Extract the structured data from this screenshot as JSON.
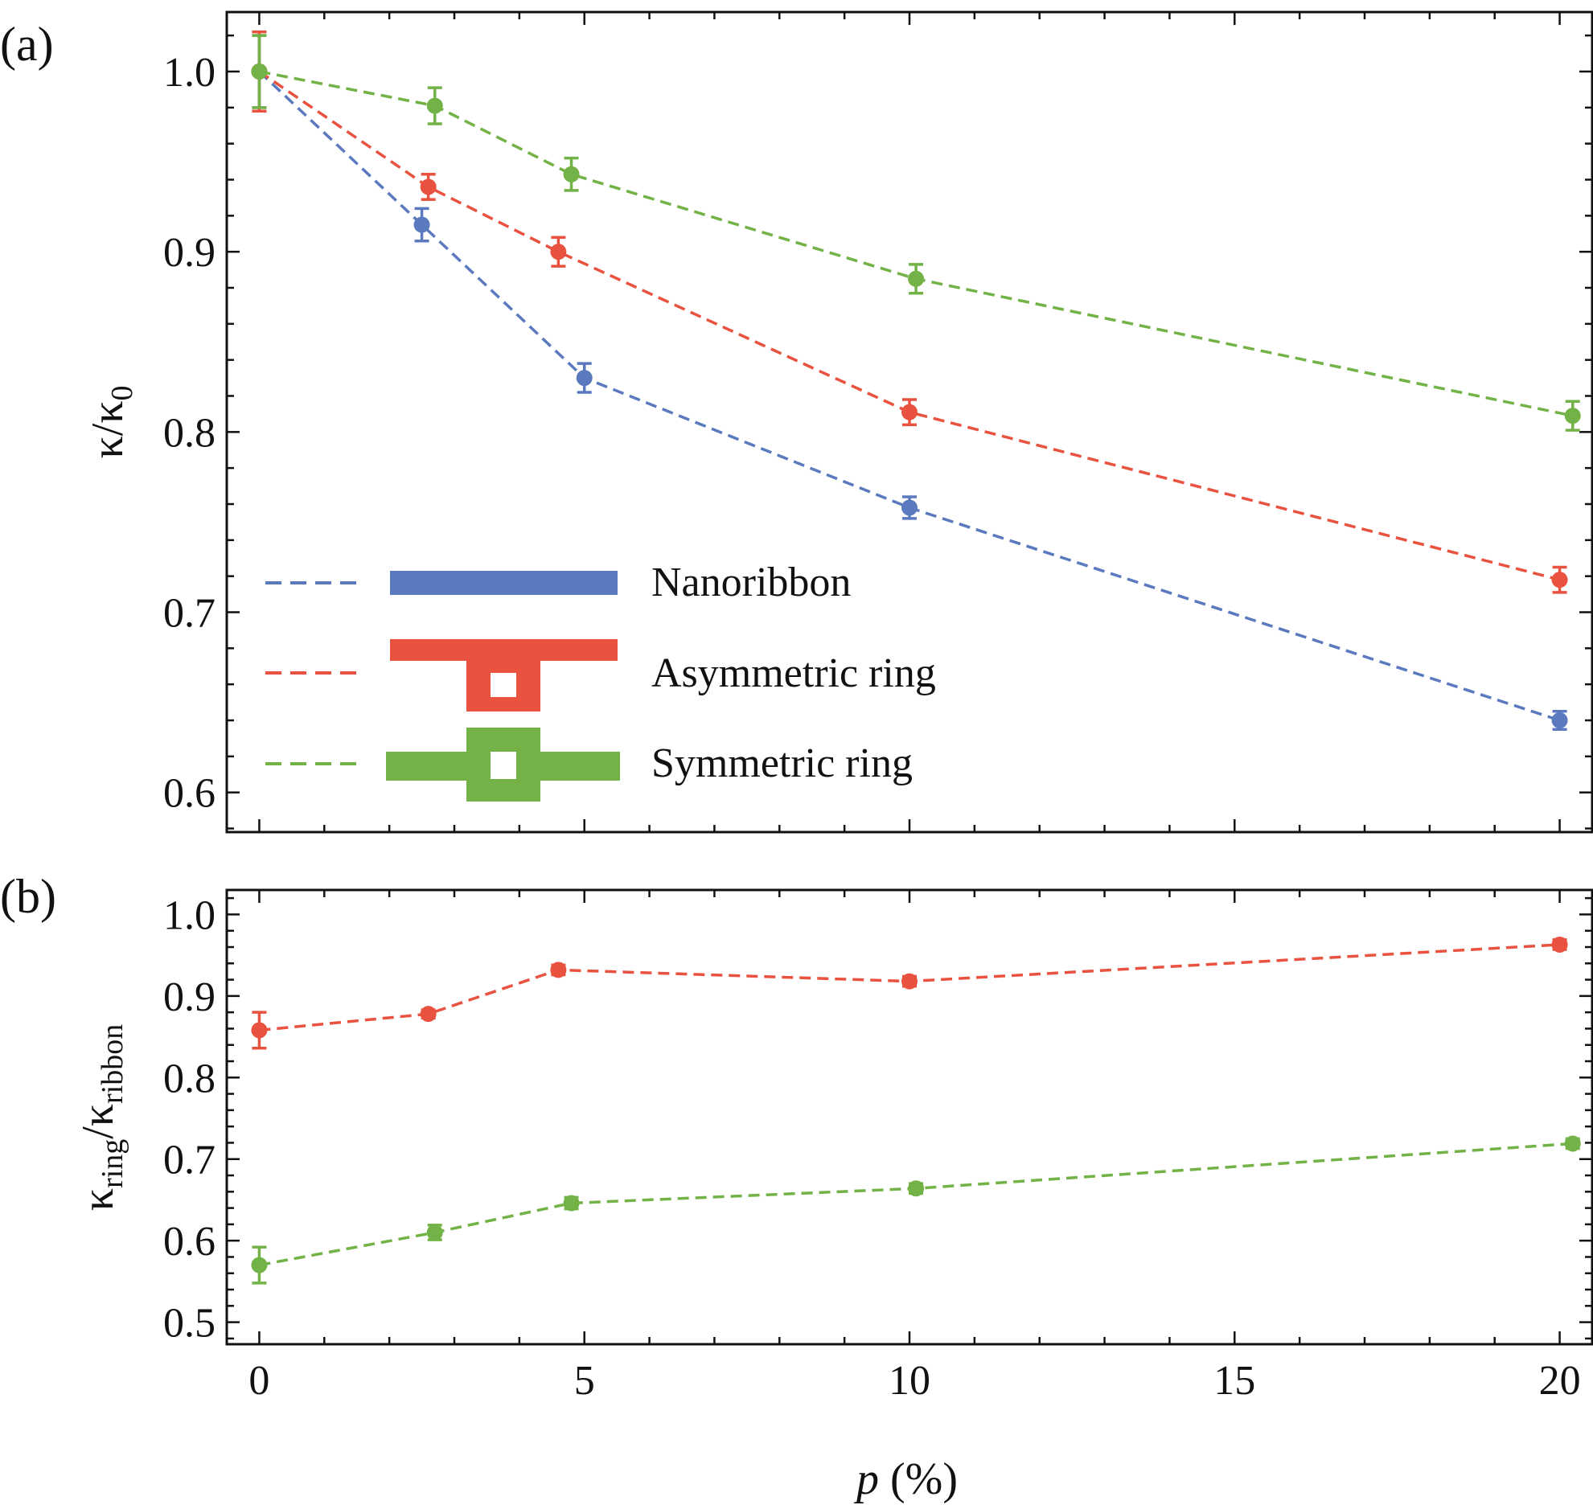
{
  "chart_data": [
    {
      "panel_label": "(a)",
      "type": "line",
      "ylabel": "κ/κ",
      "ylabel_sub": "0",
      "xlim": [
        -0.5,
        20.5
      ],
      "ylim": [
        0.578,
        1.033
      ],
      "yticks": [
        0.6,
        0.7,
        0.8,
        0.9,
        1.0
      ],
      "ytick_labels": [
        "0.6",
        "0.7",
        "0.8",
        "0.9",
        "1.0"
      ],
      "legend_position": "lower-left",
      "series": [
        {
          "name": "Nanoribbon",
          "color": "#5b79bf",
          "x": [
            0,
            2.5,
            5,
            10,
            20
          ],
          "y": [
            1.0,
            0.915,
            0.83,
            0.758,
            0.64
          ],
          "err": [
            0.02,
            0.009,
            0.008,
            0.006,
            0.005
          ]
        },
        {
          "name": "Asymmetric ring",
          "color": "#e8523f",
          "x": [
            0,
            2.6,
            4.6,
            10,
            20
          ],
          "y": [
            1.0,
            0.936,
            0.9,
            0.811,
            0.718
          ],
          "err": [
            0.022,
            0.007,
            0.008,
            0.007,
            0.007
          ]
        },
        {
          "name": "Symmetric ring",
          "color": "#72b246",
          "x": [
            0,
            2.7,
            4.8,
            10.1,
            20.2
          ],
          "y": [
            1.0,
            0.981,
            0.943,
            0.885,
            0.809
          ],
          "err": [
            0.02,
            0.01,
            0.009,
            0.008,
            0.008
          ]
        }
      ]
    },
    {
      "panel_label": "(b)",
      "type": "line",
      "ylabel": "κ",
      "ylabel_sub1": "ring",
      "ylabel_mid": "/κ",
      "ylabel_sub2": "ribbon",
      "xlabel_italic": "p",
      "xlabel_rest": " (%)",
      "xlim": [
        -0.5,
        20.5
      ],
      "ylim": [
        0.473,
        1.03
      ],
      "xticks": [
        0,
        5,
        10,
        15,
        20
      ],
      "xtick_labels": [
        "0",
        "5",
        "10",
        "15",
        "20"
      ],
      "yticks": [
        0.5,
        0.6,
        0.7,
        0.8,
        0.9,
        1.0
      ],
      "ytick_labels": [
        "0.5",
        "0.6",
        "0.7",
        "0.8",
        "0.9",
        "1.0"
      ],
      "series": [
        {
          "name": "Asymmetric ring",
          "color": "#e8523f",
          "x": [
            0,
            2.6,
            4.6,
            10,
            20
          ],
          "y": [
            0.858,
            0.878,
            0.932,
            0.918,
            0.963
          ],
          "err": [
            0.022,
            0.005,
            0.006,
            0.006,
            0.006
          ]
        },
        {
          "name": "Symmetric ring",
          "color": "#72b246",
          "x": [
            0,
            2.7,
            4.8,
            10.1,
            20.2
          ],
          "y": [
            0.57,
            0.61,
            0.646,
            0.664,
            0.719
          ],
          "err": [
            0.022,
            0.009,
            0.007,
            0.006,
            0.006
          ]
        }
      ]
    }
  ]
}
